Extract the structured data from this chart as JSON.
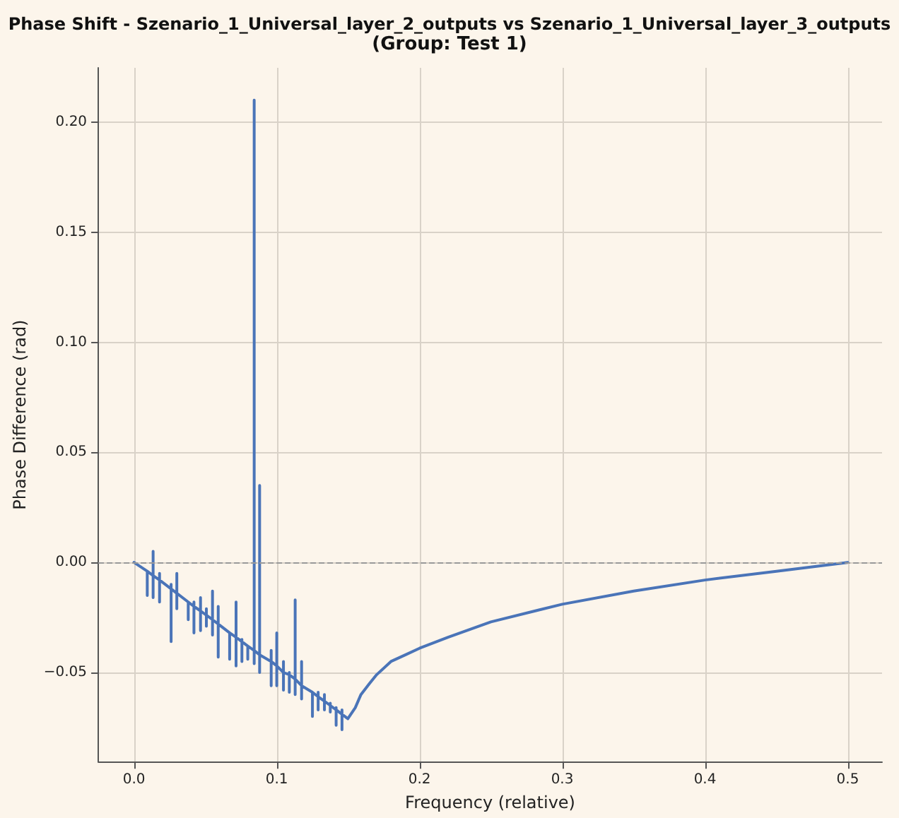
{
  "chart_data": {
    "type": "line",
    "title": "Phase Shift - Szenario_1_Universal_layer_2_outputs vs Szenario_1_Universal_layer_3_outputs",
    "subtitle": "(Group: Test 1)",
    "xlabel": "Frequency (relative)",
    "ylabel": "Phase Difference (rad)",
    "series": [
      {
        "color": "#4a74b8",
        "x": [
          0,
          0.0093,
          0.0093,
          0.0093,
          0.0093,
          0.0134,
          0.0134,
          0.0134,
          0.0134,
          0.0179,
          0.0179,
          0.0179,
          0.0179,
          0.026,
          0.026,
          0.026,
          0.026,
          0.03,
          0.03,
          0.03,
          0.03,
          0.038,
          0.038,
          0.038,
          0.038,
          0.042,
          0.042,
          0.042,
          0.042,
          0.0466,
          0.0466,
          0.0466,
          0.0466,
          0.0507,
          0.0507,
          0.0507,
          0.0507,
          0.055,
          0.055,
          0.055,
          0.055,
          0.059,
          0.059,
          0.059,
          0.059,
          0.067,
          0.067,
          0.067,
          0.067,
          0.0715,
          0.0715,
          0.0715,
          0.0715,
          0.0756,
          0.0756,
          0.0756,
          0.0756,
          0.0797,
          0.0797,
          0.0797,
          0.0797,
          0.0842,
          0.0842,
          0.0842,
          0.0842,
          0.088,
          0.088,
          0.088,
          0.088,
          0.0961,
          0.0961,
          0.0961,
          0.0961,
          0.1,
          0.1,
          0.1,
          0.1,
          0.1047,
          0.1047,
          0.1047,
          0.1047,
          0.1088,
          0.1088,
          0.1088,
          0.1088,
          0.1129,
          0.1129,
          0.1129,
          0.1129,
          0.1174,
          0.1174,
          0.1174,
          0.1174,
          0.125,
          0.125,
          0.125,
          0.125,
          0.129,
          0.129,
          0.129,
          0.129,
          0.1334,
          0.1334,
          0.1334,
          0.1334,
          0.1375,
          0.1375,
          0.1375,
          0.1375,
          0.1416,
          0.1416,
          0.1416,
          0.1416,
          0.1457,
          0.1457,
          0.1457,
          0.1457,
          0.1498,
          0.155,
          0.159,
          0.165,
          0.17,
          0.18,
          0.19,
          0.2,
          0.22,
          0.25,
          0.3,
          0.35,
          0.4,
          0.45,
          0.5
        ],
        "values": [
          0,
          -0.004,
          -0.004,
          -0.015,
          -0.004,
          -0.006,
          0.005,
          -0.016,
          -0.006,
          -0.008,
          -0.005,
          -0.018,
          -0.008,
          -0.012,
          -0.01,
          -0.036,
          -0.012,
          -0.014,
          -0.005,
          -0.021,
          -0.014,
          -0.018,
          -0.019,
          -0.026,
          -0.018,
          -0.02,
          -0.018,
          -0.032,
          -0.02,
          -0.022,
          -0.016,
          -0.031,
          -0.022,
          -0.024,
          -0.021,
          -0.029,
          -0.024,
          -0.026,
          -0.013,
          -0.033,
          -0.026,
          -0.028,
          -0.02,
          -0.043,
          -0.028,
          -0.032,
          -0.033,
          -0.044,
          -0.032,
          -0.034,
          -0.018,
          -0.047,
          -0.034,
          -0.036,
          -0.035,
          -0.045,
          -0.036,
          -0.038,
          -0.039,
          -0.044,
          -0.038,
          -0.04,
          0.21,
          -0.046,
          -0.04,
          -0.042,
          0.035,
          -0.05,
          -0.042,
          -0.045,
          -0.04,
          -0.056,
          -0.045,
          -0.047,
          -0.032,
          -0.056,
          -0.047,
          -0.05,
          -0.045,
          -0.058,
          -0.05,
          -0.051,
          -0.05,
          -0.059,
          -0.051,
          -0.053,
          -0.017,
          -0.06,
          -0.053,
          -0.056,
          -0.045,
          -0.062,
          -0.056,
          -0.059,
          -0.06,
          -0.07,
          -0.059,
          -0.061,
          -0.059,
          -0.067,
          -0.061,
          -0.063,
          -0.06,
          -0.067,
          -0.063,
          -0.065,
          -0.064,
          -0.068,
          -0.065,
          -0.067,
          -0.066,
          -0.074,
          -0.067,
          -0.069,
          -0.067,
          -0.076,
          -0.069,
          -0.071,
          -0.066,
          -0.06,
          -0.055,
          -0.051,
          -0.045,
          -0.042,
          -0.039,
          -0.034,
          -0.027,
          -0.019,
          -0.013,
          -0.008,
          -0.004,
          0
        ]
      }
    ],
    "xlim": [
      -0.025,
      0.524
    ],
    "xticks": [
      {
        "value": 0,
        "label": "0.0"
      },
      {
        "value": 0.1,
        "label": "0.1"
      },
      {
        "value": 0.2,
        "label": "0.2"
      },
      {
        "value": 0.3,
        "label": "0.3"
      },
      {
        "value": 0.4,
        "label": "0.4"
      },
      {
        "value": 0.5,
        "label": "0.5"
      }
    ],
    "ylim": [
      -0.0905,
      0.2247
    ],
    "yticks": [
      {
        "value": -0.05,
        "label": "−0.05"
      },
      {
        "value": 0,
        "label": "0.00"
      },
      {
        "value": 0.05,
        "label": "0.05"
      },
      {
        "value": 0.1,
        "label": "0.10"
      },
      {
        "value": 0.15,
        "label": "0.15"
      },
      {
        "value": 0.2,
        "label": "0.20"
      }
    ],
    "ref_lines": [
      {
        "axis": "y",
        "value": 0,
        "color": "#999999",
        "line_style": "dashed"
      }
    ],
    "grid": true,
    "marker": "none",
    "line_style": "solid"
  }
}
